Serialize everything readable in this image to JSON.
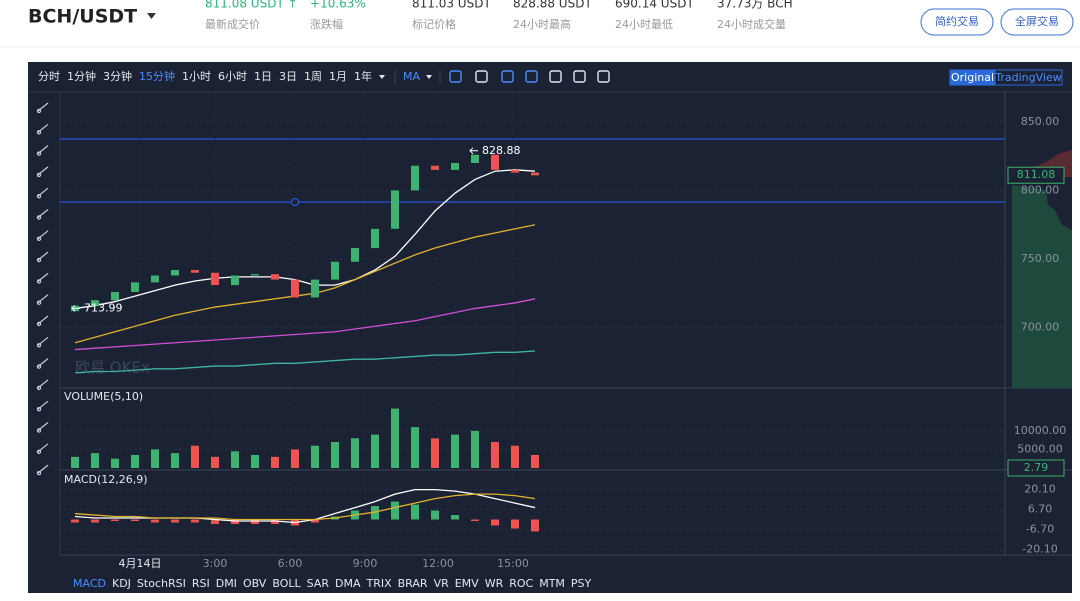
{
  "header": {
    "pair": "BCH/USDT",
    "stats": [
      {
        "value": "811.08 USDT ↑",
        "label": "最新成交价"
      },
      {
        "value": "+10.63%",
        "label": "涨跌幅"
      },
      {
        "value": "811.03 USDT",
        "label": "标记价格"
      },
      {
        "value": "828.88 USDT",
        "label": "24小时最高"
      },
      {
        "value": "690.14 USDT",
        "label": "24小时最低"
      },
      {
        "value": "37.73万 BCH",
        "label": "24小时成交量"
      }
    ],
    "buttons": [
      "简约交易",
      "全屏交易"
    ]
  },
  "toolbar": {
    "intervals": [
      "分时",
      "1分钟",
      "3分钟",
      "15分钟",
      "1小时",
      "6小时",
      "1日",
      "3日",
      "1周",
      "1月",
      "1年"
    ],
    "indicator": "MA",
    "modes": [
      "Original",
      "TradingView"
    ]
  },
  "time_axis": [
    "4月14日",
    "3:00",
    "6:00",
    "9:00",
    "12:00",
    "15:00"
  ],
  "indicators": [
    "MACD",
    "KDJ",
    "StochRSI",
    "RSI",
    "DMI",
    "OBV",
    "BOLL",
    "SAR",
    "DMA",
    "TRIX",
    "BRAR",
    "VR",
    "EMV",
    "WR",
    "ROC",
    "MTM",
    "PSY"
  ],
  "chart_data": [
    {
      "type": "candlestick",
      "open": [
        712,
        716,
        720,
        726,
        733,
        738,
        742,
        740,
        731,
        738,
        739,
        735,
        722,
        735,
        748,
        758,
        772,
        800,
        818,
        815,
        820,
        826,
        815,
        813
      ],
      "close": [
        716,
        720,
        726,
        733,
        738,
        742,
        740,
        731,
        738,
        739,
        735,
        722,
        735,
        748,
        758,
        772,
        800,
        818,
        815,
        820,
        826,
        815,
        813,
        811
      ],
      "series": [
        {
          "color": "#ffffff",
          "values": [
            714,
            716,
            719,
            723,
            727,
            731,
            734,
            736,
            737,
            737,
            737,
            735,
            731,
            731,
            735,
            742,
            752,
            768,
            785,
            798,
            808,
            814,
            815,
            814
          ]
        },
        {
          "color": "#e0b12e",
          "values": [
            689,
            693,
            697,
            701,
            705,
            709,
            712,
            715,
            717,
            719,
            721,
            723,
            725,
            729,
            735,
            741,
            747,
            753,
            758,
            762,
            766,
            769,
            772,
            775
          ]
        },
        {
          "color": "#d14fd6",
          "values": [
            684,
            685,
            686,
            687,
            688,
            689,
            690,
            691,
            692,
            693,
            694,
            695,
            696,
            697,
            699,
            701,
            703,
            705,
            708,
            711,
            714,
            716,
            718,
            721
          ]
        },
        {
          "color": "#3fb3a6",
          "values": [
            667,
            668,
            668,
            669,
            670,
            670,
            671,
            672,
            672,
            673,
            674,
            674,
            675,
            676,
            677,
            677,
            678,
            679,
            680,
            680,
            681,
            682,
            682,
            683
          ]
        }
      ],
      "annotations": [
        828.88,
        713.99
      ],
      "last": 811.08,
      "ylim": [
        656,
        871
      ],
      "yticks": [
        {
          "value": 850,
          "label": "850.00"
        },
        {
          "value": 800,
          "label": "800.00"
        },
        {
          "value": 750,
          "label": "750.00"
        },
        {
          "value": 700,
          "label": "700.00"
        }
      ]
    },
    {
      "type": "bar",
      "title": "VOLUME(5,10)",
      "values": [
        3000,
        4000,
        2500,
        3500,
        5000,
        4000,
        6000,
        3000,
        4500,
        3500,
        3000,
        5000,
        6000,
        7000,
        8000,
        9000,
        16000,
        11000,
        8000,
        9000,
        10000,
        7000,
        6000,
        3500
      ],
      "last": 2.79,
      "ylim": [
        0,
        21000
      ],
      "yticks": [
        {
          "value": 10000,
          "label": "10000.00"
        },
        {
          "value": 5000,
          "label": "5000.00"
        }
      ]
    },
    {
      "type": "macd",
      "title": "MACD(12,26,9)",
      "values": [
        -2,
        -2,
        -1,
        -1,
        -2,
        -2,
        -2,
        -3,
        -3,
        -3,
        -3,
        -4,
        -2,
        2,
        6,
        9,
        12,
        10,
        6,
        3,
        -1,
        -4,
        -6,
        -8
      ],
      "series": [
        {
          "color": "#ffffff",
          "values": [
            2,
            1,
            1,
            1,
            1,
            1,
            1,
            0,
            -1,
            -1,
            -1,
            -2,
            0,
            4,
            8,
            12,
            17,
            20,
            20,
            19,
            17,
            14,
            11,
            8
          ]
        },
        {
          "color": "#e0b12e",
          "values": [
            4,
            3,
            2,
            2,
            1,
            1,
            1,
            1,
            0,
            0,
            0,
            0,
            0,
            1,
            3,
            5,
            8,
            11,
            14,
            16,
            17,
            17,
            16,
            14
          ]
        }
      ],
      "ylim": [
        -22.4,
        31.8
      ],
      "yticks": [
        {
          "value": 20.1,
          "label": "20.10"
        },
        {
          "value": 6.7,
          "label": "6.70"
        },
        {
          "value": -6.7,
          "label": "-6.70"
        },
        {
          "value": -20.1,
          "label": "-20.10"
        }
      ]
    }
  ]
}
